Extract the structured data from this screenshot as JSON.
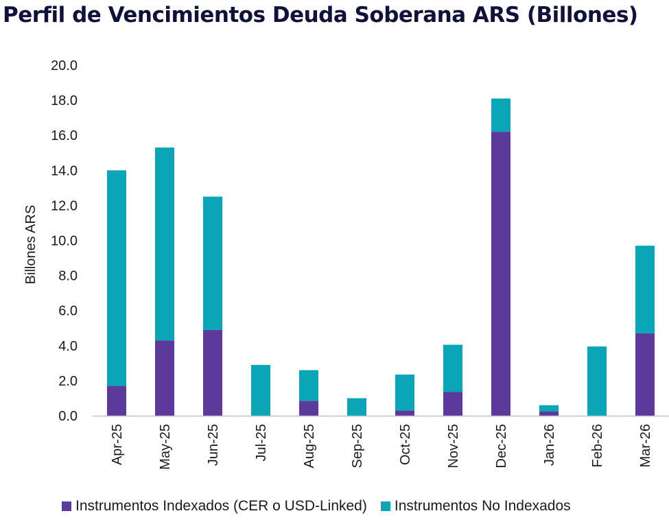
{
  "chart_data": {
    "type": "bar",
    "stacked": true,
    "title": "Perfil de Vencimientos Deuda Soberana ARS (Billones)",
    "ylabel": "Billones ARS",
    "xlabel": "",
    "ylim": [
      0,
      20
    ],
    "yticks": [
      "0.0",
      "2.0",
      "4.0",
      "6.0",
      "8.0",
      "10.0",
      "12.0",
      "14.0",
      "16.0",
      "18.0",
      "20.0"
    ],
    "categories": [
      "Apr-25",
      "May-25",
      "Jun-25",
      "Jul-25",
      "Aug-25",
      "Sep-25",
      "Oct-25",
      "Nov-25",
      "Dec-25",
      "Jan-26",
      "Feb-26",
      "Mar-26"
    ],
    "series": [
      {
        "name": "Instrumentos Indexados (CER o USD-Linked)",
        "color": "#5b3a9c",
        "values": [
          1.7,
          4.3,
          4.9,
          0.0,
          0.85,
          0.0,
          0.3,
          1.35,
          16.2,
          0.25,
          0.0,
          4.7
        ]
      },
      {
        "name": "Instrumentos No Indexados",
        "color": "#0aa6b8",
        "values": [
          12.3,
          11.0,
          7.6,
          2.9,
          1.75,
          1.0,
          2.05,
          2.7,
          1.9,
          0.35,
          3.95,
          5.0
        ]
      }
    ],
    "grid": false,
    "legend_position": "bottom"
  }
}
